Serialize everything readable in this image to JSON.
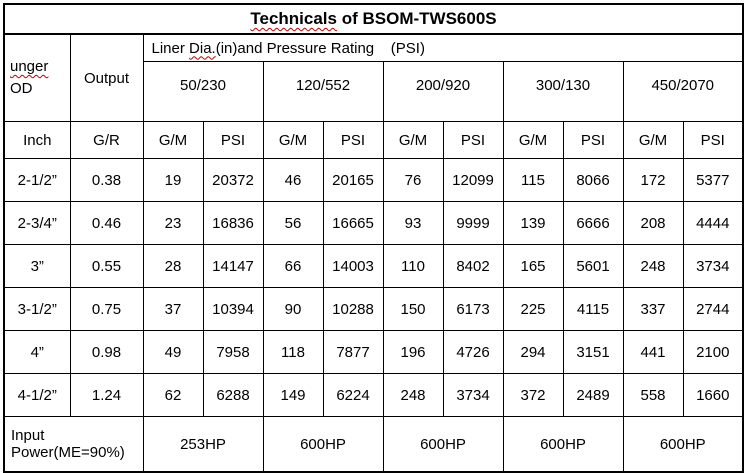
{
  "title": {
    "highlight": "Technicals",
    "rest": " of BSOM-TWS600S"
  },
  "header": {
    "od": {
      "line1": "unger",
      "line2": "OD"
    },
    "output": "Output",
    "liner": {
      "pre": "Liner ",
      "highlight": "Dia.",
      "post": "(in)and Pressure Rating    (PSI)"
    },
    "groups": [
      "50/230",
      "120/552",
      "200/920",
      "300/130",
      "450/2070"
    ],
    "sub": {
      "inch": "Inch",
      "gr": "G/R",
      "gm": "G/M",
      "psi": "PSI"
    }
  },
  "rows": [
    {
      "inch": "2-1/2”",
      "gr": "0.38",
      "values": [
        "19",
        "20372",
        "46",
        "20165",
        "76",
        "12099",
        "115",
        "8066",
        "172",
        "5377"
      ]
    },
    {
      "inch": "2-3/4”",
      "gr": "0.46",
      "values": [
        "23",
        "16836",
        "56",
        "16665",
        "93",
        "9999",
        "139",
        "6666",
        "208",
        "4444"
      ]
    },
    {
      "inch": "3”",
      "gr": "0.55",
      "values": [
        "28",
        "14147",
        "66",
        "14003",
        "110",
        "8402",
        "165",
        "5601",
        "248",
        "3734"
      ]
    },
    {
      "inch": "3-1/2”",
      "gr": "0.75",
      "values": [
        "37",
        "10394",
        "90",
        "10288",
        "150",
        "6173",
        "225",
        "4115",
        "337",
        "2744"
      ]
    },
    {
      "inch": "4”",
      "gr": "0.98",
      "values": [
        "49",
        "7958",
        "118",
        "7877",
        "196",
        "4726",
        "294",
        "3151",
        "441",
        "2100"
      ]
    },
    {
      "inch": "4-1/2”",
      "gr": "1.24",
      "values": [
        "62",
        "6288",
        "149",
        "6224",
        "248",
        "3734",
        "372",
        "2489",
        "558",
        "1660"
      ]
    }
  ],
  "footer": {
    "label": "Input Power(ME=90%)",
    "values": [
      "253HP",
      "600HP",
      "600HP",
      "600HP",
      "600HP"
    ]
  },
  "colors": {
    "border": "#000000",
    "text": "#000000",
    "squiggle": "#c00000",
    "background": "#ffffff"
  }
}
